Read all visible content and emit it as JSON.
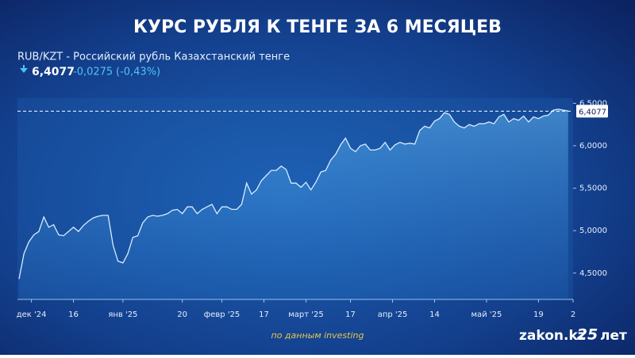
{
  "chart_data": {
    "type": "line",
    "title": "КУРС РУБЛЯ К ТЕНГЕ ЗА 6 МЕСЯЦЕВ",
    "subtitle": "RUB/KZT - Российский рубль Казахстанский тенге",
    "last": "6,4077",
    "change": "-0,0275",
    "change_pct": "(-0,43%)",
    "current": {
      "value": 6.4077,
      "label": "6,4077"
    },
    "series": [
      {
        "color": "#d6ecff",
        "values": [
          4.43,
          4.73,
          4.87,
          4.95,
          4.99,
          5.16,
          5.04,
          5.07,
          4.95,
          4.94,
          4.99,
          5.04,
          4.99,
          5.06,
          5.11,
          5.15,
          5.17,
          5.18,
          5.18,
          4.83,
          4.64,
          4.62,
          4.73,
          4.92,
          4.94,
          5.09,
          5.16,
          5.18,
          5.17,
          5.18,
          5.2,
          5.24,
          5.25,
          5.2,
          5.28,
          5.28,
          5.2,
          5.25,
          5.28,
          5.31,
          5.2,
          5.28,
          5.28,
          5.25,
          5.25,
          5.31,
          5.56,
          5.43,
          5.48,
          5.59,
          5.65,
          5.71,
          5.71,
          5.76,
          5.72,
          5.56,
          5.56,
          5.51,
          5.57,
          5.48,
          5.57,
          5.69,
          5.71,
          5.83,
          5.9,
          6.01,
          6.09,
          5.97,
          5.93,
          6.0,
          6.02,
          5.95,
          5.95,
          5.97,
          6.04,
          5.95,
          6.01,
          6.04,
          6.02,
          6.03,
          6.02,
          6.18,
          6.23,
          6.21,
          6.29,
          6.32,
          6.39,
          6.37,
          6.28,
          6.23,
          6.21,
          6.25,
          6.23,
          6.26,
          6.26,
          6.28,
          6.26,
          6.34,
          6.37,
          6.28,
          6.32,
          6.3,
          6.35,
          6.28,
          6.34,
          6.32,
          6.35,
          6.36,
          6.42,
          6.43,
          6.42,
          6.41
        ]
      }
    ],
    "xlim": [
      0,
      112
    ],
    "xticks": [
      {
        "value": 2.5,
        "label": "дек '24"
      },
      {
        "value": 11,
        "label": "16"
      },
      {
        "value": 21,
        "label": "янв '25"
      },
      {
        "value": 33,
        "label": "20"
      },
      {
        "value": 41,
        "label": "февр '25"
      },
      {
        "value": 49.5,
        "label": "17"
      },
      {
        "value": 58,
        "label": "март '25"
      },
      {
        "value": 67,
        "label": "17"
      },
      {
        "value": 75.5,
        "label": "апр '25"
      },
      {
        "value": 84,
        "label": "14"
      },
      {
        "value": 94.5,
        "label": "май '25"
      },
      {
        "value": 105,
        "label": "19"
      },
      {
        "value": 112,
        "label": "2"
      }
    ],
    "ylim": [
      4.19,
      6.56
    ],
    "yticks": [
      {
        "value": 4.5,
        "label": "4,5000"
      },
      {
        "value": 5,
        "label": "5,0000"
      },
      {
        "value": 5.5,
        "label": "5,5000"
      },
      {
        "value": 6,
        "label": "6,0000"
      },
      {
        "value": 6.5,
        "label": "6,5000"
      }
    ],
    "source": "по данным investing",
    "brand": "zakon.kz",
    "brand_badge": "25",
    "brand_suffix": "лет"
  }
}
